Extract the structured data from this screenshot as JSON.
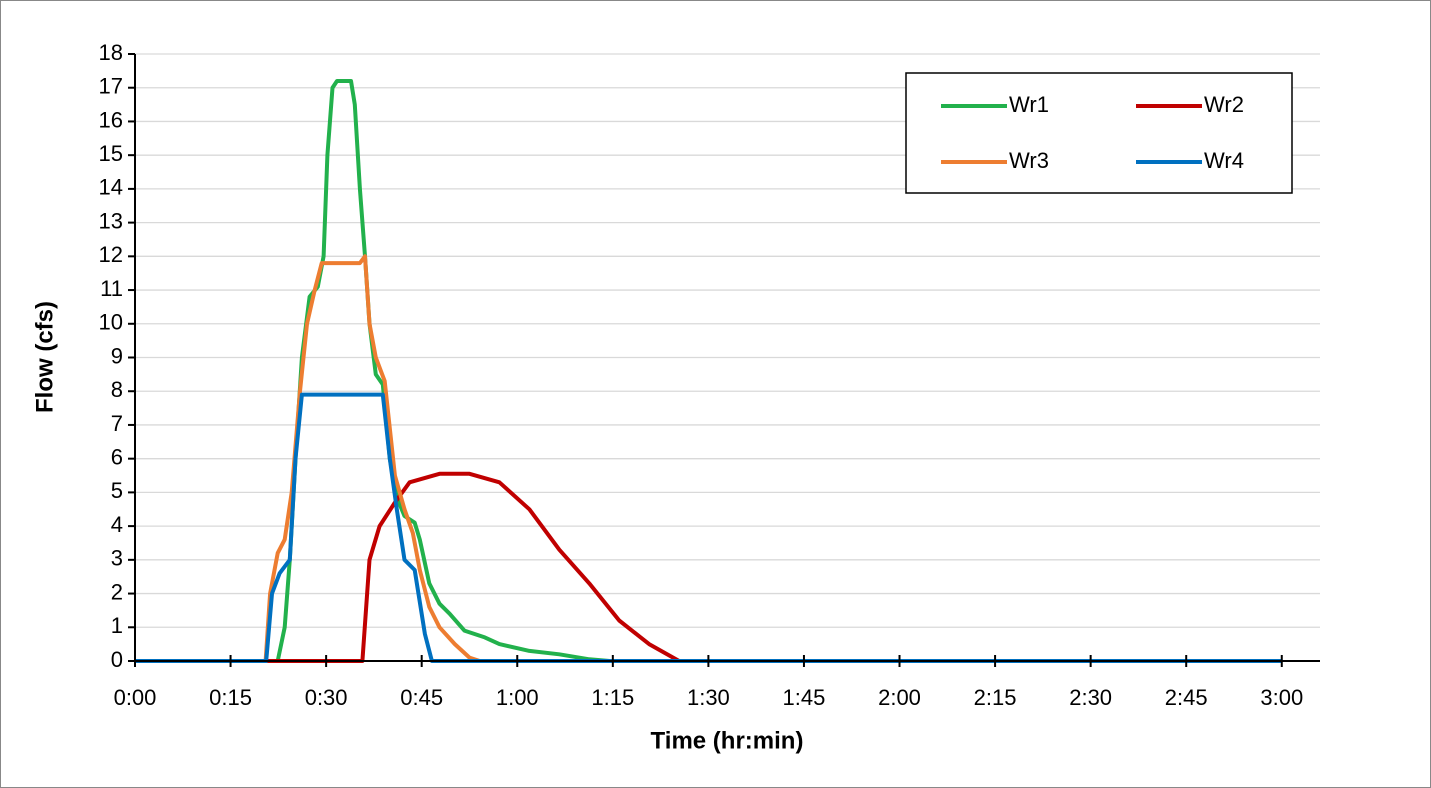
{
  "chart_data": {
    "type": "line",
    "x_label": "Time (hr:min)",
    "y_label": "Flow (cfs)",
    "xlim": [
      0,
      186
    ],
    "ylim": [
      0,
      18
    ],
    "xticks": [
      {
        "value": 0,
        "label": "0:00"
      },
      {
        "value": 15,
        "label": "0:15"
      },
      {
        "value": 30,
        "label": "0:30"
      },
      {
        "value": 45,
        "label": "0:45"
      },
      {
        "value": 60,
        "label": "1:00"
      },
      {
        "value": 75,
        "label": "1:15"
      },
      {
        "value": 90,
        "label": "1:30"
      },
      {
        "value": 105,
        "label": "1:45"
      },
      {
        "value": 120,
        "label": "2:00"
      },
      {
        "value": 135,
        "label": "2:15"
      },
      {
        "value": 150,
        "label": "2:30"
      },
      {
        "value": 165,
        "label": "2:45"
      },
      {
        "value": 180,
        "label": "3:00"
      }
    ],
    "yticks": [
      0,
      1,
      2,
      3,
      4,
      5,
      6,
      7,
      8,
      9,
      10,
      11,
      12,
      13,
      14,
      15,
      16,
      17,
      18
    ],
    "grid": true,
    "legend": "top-right",
    "series": [
      {
        "name": "Wr1",
        "color": "#22b14c",
        "x": [
          0,
          22.4,
          23.5,
          24.3,
          25.2,
          26.2,
          27.4,
          28.7,
          29.6,
          30.2,
          31,
          31.7,
          33.9,
          34.5,
          35.3,
          36.1,
          36.8,
          37.8,
          38.9,
          40,
          41.2,
          42.3,
          43.9,
          44.7,
          46.2,
          47.8,
          49.4,
          51.7,
          54.9,
          57.2,
          61.9,
          66.6,
          71.3,
          74.5,
          180
        ],
        "values": [
          0,
          0,
          1,
          3,
          6,
          9,
          10.8,
          11.1,
          12,
          15,
          17,
          17.2,
          17.2,
          16.5,
          14,
          12,
          10,
          8.5,
          8.2,
          6,
          4.8,
          4.3,
          4.1,
          3.6,
          2.3,
          1.7,
          1.4,
          0.9,
          0.7,
          0.5,
          0.3,
          0.2,
          0.05,
          0,
          0
        ]
      },
      {
        "name": "Wr2",
        "color": "#c00000",
        "x": [
          0,
          35.7,
          36.8,
          38.4,
          40.8,
          43.1,
          47.8,
          52.5,
          57.2,
          61.9,
          66.6,
          71.3,
          76,
          80.7,
          85.4,
          180
        ],
        "values": [
          0,
          0,
          3,
          4,
          4.7,
          5.3,
          5.55,
          5.55,
          5.3,
          4.5,
          3.3,
          2.3,
          1.2,
          0.5,
          0,
          0
        ]
      },
      {
        "name": "Wr3",
        "color": "#ed7d31",
        "x": [
          0,
          20.5,
          21.2,
          22.4,
          23.5,
          24.6,
          25.9,
          27,
          28.2,
          29.3,
          30.6,
          35.3,
          36.1,
          36.8,
          37.8,
          39.2,
          40.8,
          42.3,
          43.6,
          44.7,
          46.2,
          47.8,
          50.2,
          52.5,
          54.1,
          180
        ],
        "values": [
          0,
          0,
          2,
          3.2,
          3.6,
          5,
          8,
          10,
          11,
          11.8,
          11.8,
          11.8,
          12,
          10,
          9,
          8.3,
          5.5,
          4.5,
          3.8,
          2.7,
          1.6,
          1,
          0.5,
          0.1,
          0,
          0
        ]
      },
      {
        "name": "Wr4",
        "color": "#0070c0",
        "x": [
          0,
          20.6,
          21.5,
          22.7,
          24.3,
          25.2,
          26.2,
          27.4,
          38.9,
          40,
          41.1,
          42.3,
          43.9,
          45.5,
          46.6,
          180
        ],
        "values": [
          0,
          0,
          2,
          2.6,
          3,
          6,
          7.9,
          7.9,
          7.9,
          6,
          4.5,
          3,
          2.7,
          0.8,
          0,
          0
        ]
      }
    ]
  }
}
